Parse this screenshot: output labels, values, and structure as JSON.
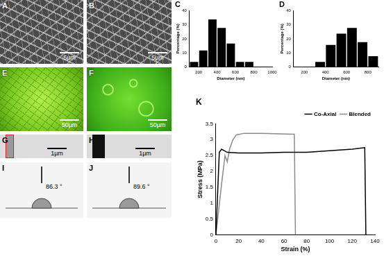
{
  "panels": [
    {
      "label": "A",
      "scale_bar": "5µm"
    },
    {
      "label": "B",
      "scale_bar": "5µm"
    },
    {
      "label": "E",
      "scale_bar": "50µm"
    },
    {
      "label": "F",
      "scale_bar": "50µm"
    },
    {
      "label": "G",
      "scale_bar": "1µm"
    },
    {
      "label": "H",
      "scale_bar": "1µm"
    },
    {
      "label": "I",
      "text": "86.3 °"
    },
    {
      "label": "J",
      "text": "89.6 °"
    }
  ],
  "chart_data": [
    {
      "type": "histogram",
      "title": "C",
      "xlabel": "Diameter (nm)",
      "ylabel": "Percentage (%)",
      "bins": [
        100,
        200,
        300,
        400,
        500,
        600,
        700,
        800
      ],
      "values": [
        4,
        12,
        34,
        28,
        17,
        4,
        4
      ],
      "color": "#000000",
      "xlim": [
        100,
        1000
      ],
      "xticks": [
        200,
        400,
        600,
        800,
        1000
      ],
      "ylim": [
        0,
        40
      ],
      "yticks": [
        0,
        10,
        20,
        30,
        40
      ],
      "grid": false
    },
    {
      "type": "histogram",
      "title": "D",
      "xlabel": "Diameter (nm)",
      "ylabel": "Percentage (%)",
      "bins": [
        300,
        400,
        500,
        600,
        700,
        800,
        900
      ],
      "values": [
        4,
        16,
        24,
        28,
        18,
        8
      ],
      "color": "#000000",
      "xlim": [
        100,
        900
      ],
      "xticks": [
        200,
        400,
        600,
        800
      ],
      "ylim": [
        0,
        40
      ],
      "yticks": [
        0,
        10,
        20,
        30,
        40
      ],
      "grid": false
    },
    {
      "type": "line",
      "title": "K",
      "xlabel": "Strain (%)",
      "ylabel": "Stress (MPa)",
      "xlim": [
        0,
        140
      ],
      "xticks": [
        0,
        20,
        40,
        60,
        80,
        100,
        120,
        140
      ],
      "ylim": [
        0,
        3.5
      ],
      "yticks": [
        0,
        0.5,
        1,
        1.5,
        2,
        2.5,
        3,
        3.5
      ],
      "legend": "top right",
      "grid": false,
      "series": [
        {
          "name": "Co-Axial",
          "color": "#000000",
          "x": [
            0,
            3,
            5,
            10,
            20,
            40,
            60,
            80,
            100,
            120,
            131,
            132
          ],
          "values": [
            0,
            2.6,
            2.7,
            2.6,
            2.58,
            2.58,
            2.6,
            2.6,
            2.65,
            2.7,
            2.75,
            0
          ]
        },
        {
          "name": "Blended",
          "color": "#8c8c8c",
          "x": [
            0,
            5,
            8,
            10,
            12,
            15,
            18,
            25,
            40,
            69,
            70
          ],
          "values": [
            0,
            1.6,
            2.5,
            2.3,
            2.7,
            3.0,
            3.15,
            3.2,
            3.2,
            3.17,
            0
          ]
        }
      ]
    }
  ]
}
